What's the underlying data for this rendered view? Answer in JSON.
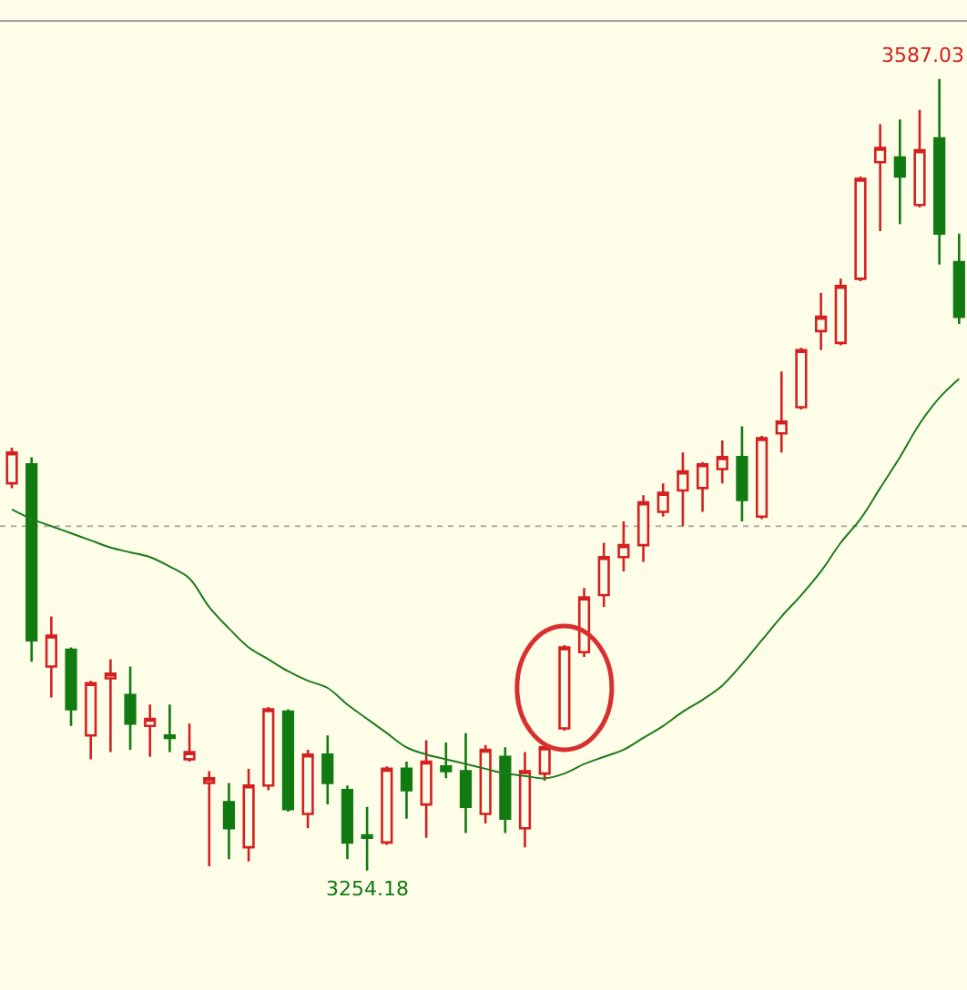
{
  "chart_data": {
    "type": "candlestick",
    "categories": [
      null,
      null,
      null,
      null,
      null,
      null,
      null,
      null,
      null,
      null,
      null,
      null,
      null,
      null,
      null,
      null,
      null,
      null,
      null,
      null,
      null,
      null,
      null,
      null,
      null,
      null,
      null,
      null,
      null,
      null,
      null,
      null,
      null,
      null,
      null,
      null,
      null,
      null,
      null,
      null,
      null,
      null,
      null,
      null,
      null,
      null,
      null,
      null,
      null
    ],
    "ohlc": [
      [
        3417,
        3432,
        3415,
        3430
      ],
      [
        3425,
        3428,
        3342,
        3351
      ],
      [
        3340,
        3361,
        3327,
        3353
      ],
      [
        3347,
        3348,
        3315,
        3322
      ],
      [
        3311,
        3334,
        3301,
        3333
      ],
      [
        3335,
        3343,
        3304,
        3337
      ],
      [
        3328,
        3340,
        3305,
        3316
      ],
      [
        3315,
        3324,
        3302,
        3318
      ],
      [
        3311,
        3324,
        3304,
        3310
      ],
      [
        3301,
        3316,
        3300,
        3304
      ],
      [
        3291,
        3296,
        3256,
        3293
      ],
      [
        3283,
        3291,
        3259,
        3272
      ],
      [
        3264,
        3297,
        3258,
        3290
      ],
      [
        3290,
        3323,
        3288,
        3322
      ],
      [
        3321,
        3322,
        3279,
        3280
      ],
      [
        3278,
        3305,
        3272,
        3303
      ],
      [
        3303,
        3311,
        3282,
        3291
      ],
      [
        3288,
        3290,
        3259,
        3266
      ],
      [
        3269,
        3281,
        3254.18,
        3268
      ],
      [
        3266,
        3298,
        3265,
        3297
      ],
      [
        3297,
        3300,
        3276,
        3288
      ],
      [
        3282,
        3309,
        3268,
        3300
      ],
      [
        3298,
        3308,
        3293,
        3296
      ],
      [
        3296,
        3312,
        3270,
        3281
      ],
      [
        3278,
        3307,
        3274,
        3305
      ],
      [
        3302,
        3306,
        3270,
        3276
      ],
      [
        3272,
        3304,
        3264,
        3296
      ],
      [
        3295,
        3308,
        3292,
        3306
      ],
      [
        3314,
        3349,
        3313,
        3348
      ],
      [
        3346,
        3373,
        3344,
        3369
      ],
      [
        3370,
        3392,
        3365,
        3386
      ],
      [
        3386,
        3401,
        3380,
        3391
      ],
      [
        3391,
        3412,
        3384,
        3409
      ],
      [
        3405,
        3417,
        3403,
        3413
      ],
      [
        3414,
        3430,
        3399,
        3422
      ],
      [
        3415,
        3426,
        3405,
        3425
      ],
      [
        3423,
        3435,
        3417,
        3428
      ],
      [
        3428,
        3441,
        3401,
        3410
      ],
      [
        3403,
        3437,
        3402,
        3436
      ],
      [
        3438,
        3464,
        3430,
        3443
      ],
      [
        3449,
        3474,
        3448,
        3473
      ],
      [
        3481,
        3497,
        3473,
        3487
      ],
      [
        3476,
        3503,
        3475,
        3500
      ],
      [
        3503,
        3546,
        3502,
        3545
      ],
      [
        3552,
        3568,
        3523,
        3558
      ],
      [
        3554,
        3570,
        3526,
        3546
      ],
      [
        3534,
        3574,
        3533,
        3557
      ],
      [
        3562,
        3587.03,
        3509,
        3522
      ],
      [
        3510,
        3522,
        3484,
        3487
      ]
    ],
    "colors": [
      "#d42020",
      "#117a11",
      "#d42020",
      "#117a11",
      "#d42020",
      "#d42020",
      "#117a11",
      "#d42020",
      "#117a11",
      "#d42020",
      "#d42020",
      "#117a11",
      "#d42020",
      "#d42020",
      "#117a11",
      "#d42020",
      "#117a11",
      "#117a11",
      "#117a11",
      "#d42020",
      "#117a11",
      "#d42020",
      "#117a11",
      "#117a11",
      "#d42020",
      "#117a11",
      "#d42020",
      "#d42020",
      "#d42020",
      "#d42020",
      "#d42020",
      "#d42020",
      "#d42020",
      "#d42020",
      "#d42020",
      "#d42020",
      "#d42020",
      "#117a11",
      "#d42020",
      "#d42020",
      "#d42020",
      "#d42020",
      "#d42020",
      "#d42020",
      "#d42020",
      "#117a11",
      "#d42020",
      "#117a11",
      "#117a11"
    ],
    "series": [
      {
        "type": "line",
        "color": "#1e7a1e",
        "values": [
          3406,
          3402,
          3399,
          3396,
          3393,
          3390,
          3388,
          3386,
          3382,
          3377,
          3365,
          3356,
          3348,
          3343,
          3338,
          3334,
          3331,
          3324,
          3318,
          3312,
          3306,
          3303,
          3301,
          3299,
          3297,
          3295,
          3294,
          3293,
          3295,
          3299,
          3302,
          3305,
          3310,
          3315,
          3321,
          3326,
          3332,
          3341,
          3351,
          3361,
          3370,
          3380,
          3392,
          3402,
          3415,
          3428,
          3442,
          3453,
          3461
        ]
      }
    ],
    "ref_lines": [
      {
        "axis": "y",
        "value": 3399,
        "color": "#b0b0a0",
        "line_style": "dotted"
      }
    ],
    "annotations": [
      "3587.03",
      "3254.18"
    ],
    "ylim": [
      3204,
      3611
    ]
  }
}
